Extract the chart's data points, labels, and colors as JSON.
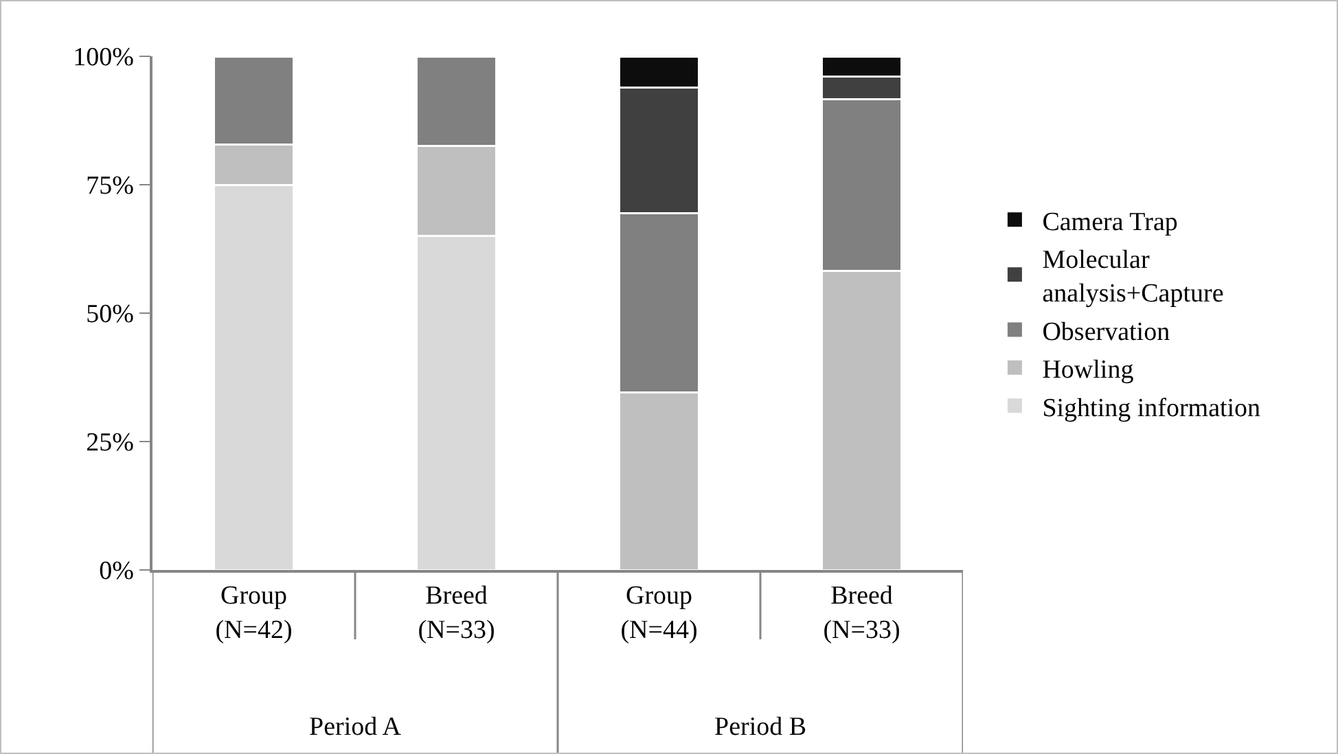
{
  "chart_data": {
    "type": "bar",
    "stacked": true,
    "categories": [
      "Group\n(N=42)",
      "Breed\n(N=33)",
      "Group\n(N=44)",
      "Breed\n(N=33)"
    ],
    "series": [
      {
        "name": "Sighting information",
        "color": "#d9d9d9",
        "values": [
          75,
          65,
          null,
          null
        ]
      },
      {
        "name": "Howling",
        "color": "#bfbfbf",
        "values": [
          7.8,
          17.6,
          34.6,
          58.2
        ]
      },
      {
        "name": "Observation",
        "color": "#808080",
        "values": [
          17.2,
          17.4,
          34.8,
          33.4
        ]
      },
      {
        "name": "Molecular\nanalysis+Capture",
        "color": "#404040",
        "values": [
          null,
          null,
          24.5,
          4.4
        ]
      },
      {
        "name": "Camera Trap",
        "color": "#0d0d0d",
        "values": [
          null,
          null,
          6.1,
          4.0
        ]
      }
    ],
    "ylim": [
      0,
      100
    ],
    "yticks": [
      {
        "value": 0,
        "label": "0%"
      },
      {
        "value": 25,
        "label": "25%"
      },
      {
        "value": 50,
        "label": "50%"
      },
      {
        "value": 75,
        "label": "75%"
      },
      {
        "value": 100,
        "label": "100%"
      }
    ],
    "annotations": [
      "Period A",
      "Period B"
    ],
    "grid": false,
    "legend": "right"
  }
}
